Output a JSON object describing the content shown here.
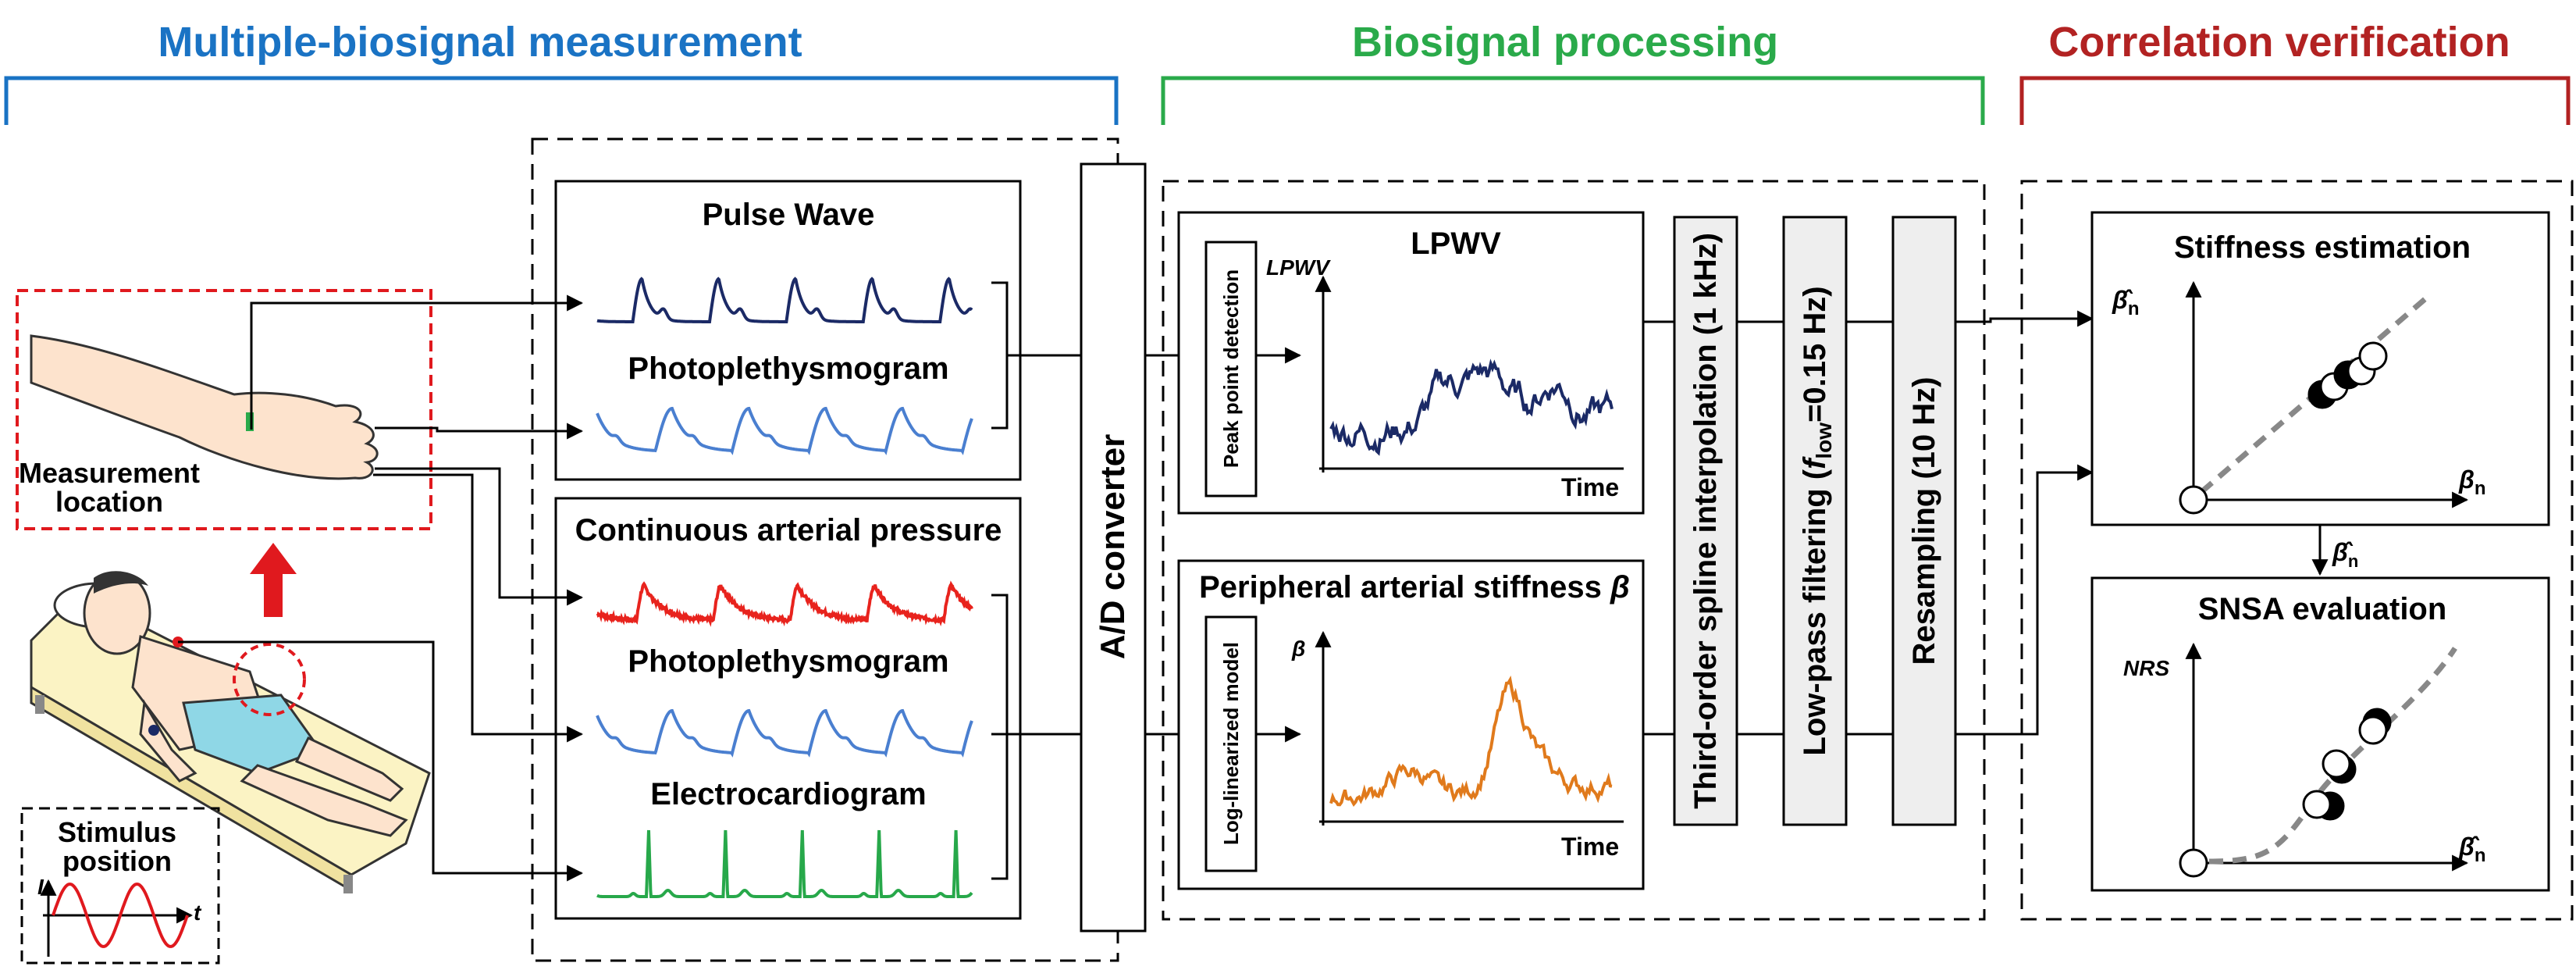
{
  "sections": {
    "measurement": {
      "title": "Multiple-biosignal measurement",
      "color": "#1a73c4"
    },
    "processing": {
      "title": "Biosignal processing",
      "color": "#2aaa4a"
    },
    "verification": {
      "title": "Correlation verification",
      "color": "#b22222"
    }
  },
  "patient": {
    "measurement_location": [
      "Measurement",
      "location"
    ],
    "stimulus_position": [
      "Stimulus",
      "position"
    ],
    "stimulus_axis_y": "I",
    "stimulus_axis_x": "t"
  },
  "signals": {
    "pulse_wave": "Pulse Wave",
    "ppg_top": "Photoplethysmogram",
    "arterial_pressure": "Continuous arterial pressure",
    "ppg_bottom": "Photoplethysmogram",
    "ecg": "Electrocardiogram"
  },
  "converter": {
    "label": "A/D converter"
  },
  "lpwv": {
    "title": "LPWV",
    "method": "Peak point detection",
    "y_label": "LPWV",
    "x_label": "Time"
  },
  "stiffness": {
    "title": "Peripheral arterial stiffness ",
    "symbol": "β",
    "method": "Log-linearized model",
    "y_label": "β",
    "x_label": "Time"
  },
  "steps": {
    "spline": "Third-order spline interpolation (1 kHz)",
    "lowpass_pre": "Low-pass filtering (",
    "lowpass_f": "f",
    "lowpass_sub": "low",
    "lowpass_post": "=0.15 Hz)",
    "resample": "Resampling (10 Hz)"
  },
  "estimation": {
    "title": "Stiffness estimation",
    "y_label": "β̂",
    "y_sub": "n",
    "x_label": "β",
    "x_sub": "n",
    "between_label": "β̂",
    "between_sub": "n"
  },
  "snsa": {
    "title": "SNSA evaluation",
    "y_label": "NRS",
    "x_label": "β̂",
    "x_sub": "n"
  },
  "colors": {
    "red": "#e0191e",
    "navy": "#1b2a66",
    "blue": "#4a7fd0",
    "red_wave": "#e8231d",
    "green_wave": "#27a84a",
    "orange": "#e07a1c",
    "grey_box": "#eeeeee"
  }
}
